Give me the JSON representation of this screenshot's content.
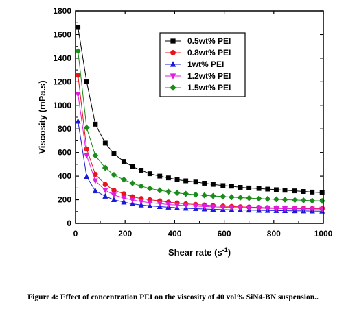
{
  "caption": "Figure 4: Effect of concentration PEI on the viscosity of 40 vol% SiN4-BN suspension..",
  "chart_data": {
    "type": "line",
    "title": "",
    "xlabel": "Shear rate (s",
    "xlabel_sup": "-1",
    "xlabel_end": ")",
    "ylabel": "Viscosity (mPa.s)",
    "xlim": [
      0,
      1000
    ],
    "ylim": [
      0,
      1800
    ],
    "xticks": [
      "0",
      "200",
      "400",
      "600",
      "800",
      "1000"
    ],
    "yticks": [
      "0",
      "200",
      "400",
      "600",
      "800",
      "1000",
      "1200",
      "1400",
      "1600",
      "1800"
    ],
    "grid": false,
    "legend_position": "top-right",
    "x": [
      10,
      45,
      80,
      120,
      155,
      195,
      230,
      265,
      300,
      340,
      375,
      410,
      445,
      485,
      520,
      555,
      595,
      630,
      665,
      700,
      740,
      775,
      810,
      845,
      885,
      920,
      955,
      995
    ],
    "series": [
      {
        "name": "0.5wt% PEI",
        "marker": "square",
        "color": "#000000",
        "values": [
          1660,
          1200,
          840,
          680,
          590,
          525,
          480,
          450,
          420,
          400,
          385,
          370,
          360,
          350,
          340,
          330,
          320,
          315,
          305,
          300,
          295,
          290,
          285,
          280,
          275,
          270,
          265,
          260
        ]
      },
      {
        "name": "0.8wt% PEI",
        "marker": "circle",
        "color": "#e8141c",
        "values": [
          1255,
          630,
          415,
          330,
          280,
          250,
          225,
          210,
          200,
          190,
          180,
          172,
          165,
          160,
          155,
          150,
          146,
          143,
          140,
          138,
          135,
          133,
          131,
          130,
          128,
          126,
          125,
          124
        ]
      },
      {
        "name": "1wt% PEI",
        "marker": "triangle-up",
        "color": "#1a1ad6",
        "values": [
          865,
          395,
          275,
          230,
          200,
          180,
          165,
          155,
          148,
          142,
          137,
          132,
          128,
          125,
          122,
          119,
          117,
          115,
          113,
          112,
          110,
          109,
          108,
          107,
          106,
          105,
          104,
          103
        ]
      },
      {
        "name": "1.2wt% PEI",
        "marker": "triangle-down",
        "color": "#e01ce0",
        "values": [
          1095,
          575,
          360,
          280,
          240,
          215,
          198,
          185,
          175,
          167,
          160,
          155,
          150,
          146,
          143,
          140,
          137,
          135,
          133,
          131,
          129,
          127,
          126,
          125,
          124,
          123,
          122,
          121
        ]
      },
      {
        "name": "1.5wt% PEI",
        "marker": "diamond",
        "color": "#1a8c1a",
        "values": [
          1460,
          810,
          575,
          470,
          410,
          370,
          340,
          315,
          295,
          280,
          268,
          258,
          250,
          243,
          237,
          232,
          227,
          222,
          218,
          214,
          210,
          207,
          204,
          201,
          198,
          195,
          192,
          190
        ]
      }
    ]
  }
}
